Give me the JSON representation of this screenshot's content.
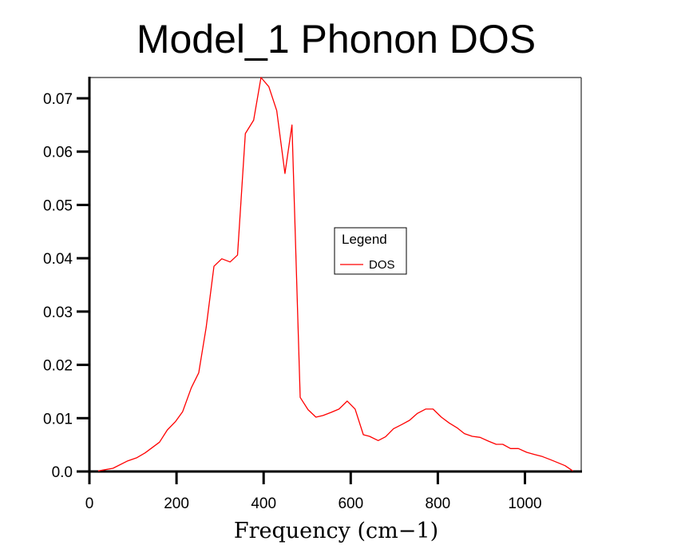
{
  "chart_data": {
    "type": "line",
    "title": "Model_1 Phonon DOS",
    "xlabel": "Frequency (cm−1)",
    "ylabel": "",
    "xlim": [
      0,
      1130
    ],
    "ylim": [
      0,
      0.0737
    ],
    "xticks": [
      0,
      200,
      400,
      600,
      800,
      1000
    ],
    "xtick_labels": [
      "0",
      "200",
      "400",
      "600",
      "800",
      "1000"
    ],
    "yticks": [
      0,
      0.01,
      0.02,
      0.03,
      0.04,
      0.05,
      0.06,
      0.07
    ],
    "ytick_labels": [
      "0.0",
      "0.01",
      "0.02",
      "0.03",
      "0.04",
      "0.05",
      "0.06",
      "0.07"
    ],
    "grid": false,
    "legend": {
      "title": "Legend",
      "placement": "center",
      "entries": [
        "DOS"
      ]
    },
    "series": [
      {
        "name": "DOS",
        "color": "#ff0000",
        "x": [
          20,
          54,
          88,
          109,
          128,
          161,
          179,
          198,
          214,
          234,
          251,
          268,
          286,
          304,
          323,
          340,
          358,
          377,
          394,
          412,
          430,
          449,
          465,
          484,
          502,
          520,
          536,
          555,
          573,
          592,
          610,
          629,
          643,
          663,
          680,
          698,
          717,
          735,
          753,
          772,
          789,
          808,
          826,
          844,
          861,
          879,
          897,
          916,
          934,
          949,
          967,
          985,
          1004,
          1022,
          1040,
          1059,
          1077,
          1092,
          1110
        ],
        "y": [
          0.0001,
          0.0006,
          0.002,
          0.0026,
          0.0035,
          0.0055,
          0.0078,
          0.0094,
          0.0112,
          0.0157,
          0.0185,
          0.027,
          0.0385,
          0.0399,
          0.0393,
          0.0406,
          0.0634,
          0.0659,
          0.0739,
          0.0722,
          0.0677,
          0.0559,
          0.065,
          0.0139,
          0.0116,
          0.0102,
          0.0105,
          0.0111,
          0.0117,
          0.0132,
          0.0117,
          0.0069,
          0.0066,
          0.0058,
          0.0065,
          0.008,
          0.0088,
          0.0096,
          0.0109,
          0.0117,
          0.0117,
          0.0102,
          0.0091,
          0.0082,
          0.0071,
          0.0066,
          0.0064,
          0.0057,
          0.0051,
          0.0051,
          0.0043,
          0.0043,
          0.0036,
          0.0032,
          0.0028,
          0.0022,
          0.0016,
          0.0011,
          0.0001
        ]
      }
    ]
  }
}
